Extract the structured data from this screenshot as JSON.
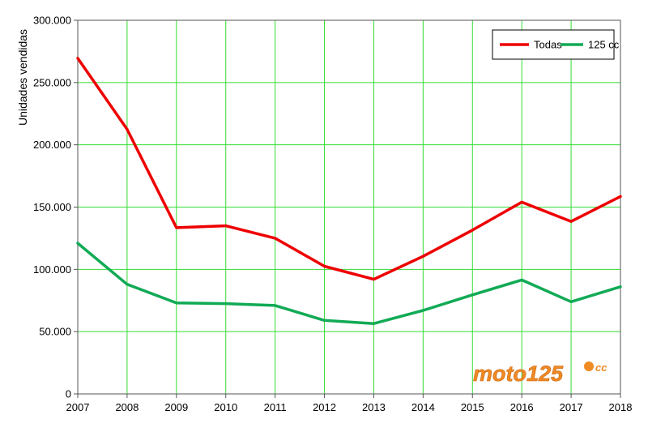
{
  "chart_data": {
    "type": "line",
    "ylabel": "Unidades vendidas",
    "xlabel": "",
    "x": [
      2007,
      2008,
      2009,
      2010,
      2011,
      2012,
      2013,
      2014,
      2015,
      2016,
      2017,
      2018
    ],
    "ylim": [
      0,
      300000
    ],
    "yticks": [
      0,
      50000,
      100000,
      150000,
      200000,
      250000,
      300000
    ],
    "ytick_labels": [
      "0",
      "50.000",
      "100.000",
      "150.000",
      "200.000",
      "250.000",
      "300.000"
    ],
    "grid": true,
    "grid_color": "#33dd33",
    "legend_position": "top-right",
    "series": [
      {
        "name": "Todas",
        "color": "#ee0000",
        "values": [
          269500,
          212500,
          133500,
          135000,
          125000,
          102500,
          92000,
          110500,
          131500,
          154000,
          138500,
          158500
        ]
      },
      {
        "name": "125 cc",
        "color": "#11aa55",
        "values": [
          121000,
          88000,
          73000,
          72500,
          71000,
          59000,
          56500,
          67000,
          79500,
          91500,
          74000,
          86000
        ]
      }
    ]
  },
  "watermark": {
    "text": "moto125",
    "suffix": "cc",
    "color": "#f08a24"
  }
}
